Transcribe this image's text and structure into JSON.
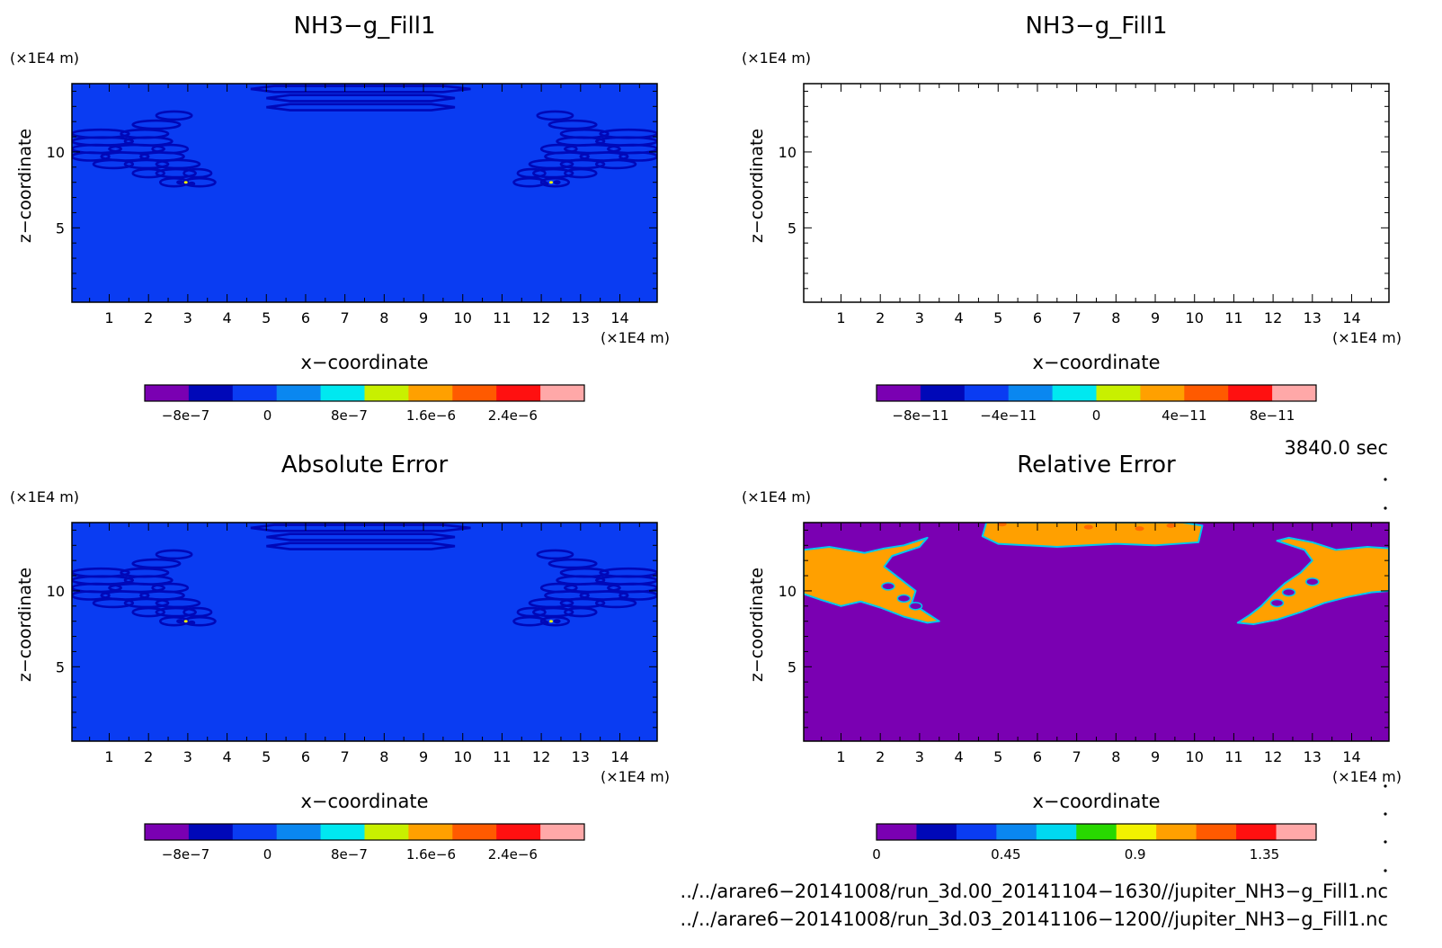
{
  "colors": {
    "background": "#ffffff",
    "field_bg": "#0a87f0",
    "field_line": "#0a3cf2",
    "field_dark": "#0008b8",
    "relerr_bg": "#7a00b2",
    "relerr_fill": "#f2f200",
    "relerr_edge": "#00c8ee",
    "relerr_hot": "#ff6a00"
  },
  "chart_data": [
    {
      "type": "heatmap",
      "title": "NH3−g_Fill1",
      "xlabel": "x−coordinate",
      "ylabel": "z−coordinate",
      "x_unit": "(×1E4 m)",
      "y_unit": "(×1E4 m)",
      "xticks": [
        "1",
        "2",
        "3",
        "4",
        "5",
        "6",
        "7",
        "8",
        "9",
        "10",
        "11",
        "12",
        "13",
        "14"
      ],
      "yticks": [
        "5",
        "10"
      ],
      "xlim": [
        0.05,
        14.95
      ],
      "ylim": [
        0.1,
        14.5
      ],
      "colorbar": {
        "colors": [
          "#7a00b2",
          "#0008b8",
          "#0a3cf2",
          "#0a87f0",
          "#00e8f0",
          "#c8f000",
          "#ffa000",
          "#ff5a00",
          "#ff1010",
          "#ffa8a8"
        ],
        "ticks": [
          "−8e−7",
          "0",
          "8e−7",
          "1.6e−6",
          "2.4e−6"
        ],
        "tick_values": [
          -8e-07,
          0,
          8e-07,
          1.6e-06,
          2.4e-06
        ],
        "range": [
          -1.2e-06,
          3.1e-06
        ]
      },
      "background_value": 1e-08,
      "contour_value": -5e-07
    },
    {
      "type": "heatmap",
      "title": "NH3−g_Fill1",
      "xlabel": "x−coordinate",
      "ylabel": "z−coordinate",
      "x_unit": "(×1E4 m)",
      "y_unit": "(×1E4 m)",
      "xticks": [
        "1",
        "2",
        "3",
        "4",
        "5",
        "6",
        "7",
        "8",
        "9",
        "10",
        "11",
        "12",
        "13",
        "14"
      ],
      "yticks": [
        "5",
        "10"
      ],
      "xlim": [
        0.05,
        14.95
      ],
      "ylim": [
        0.1,
        14.5
      ],
      "colorbar": {
        "colors": [
          "#7a00b2",
          "#0008b8",
          "#0a3cf2",
          "#0a87f0",
          "#00e8f0",
          "#c8f000",
          "#ffa000",
          "#ff5a00",
          "#ff1010",
          "#ffa8a8"
        ],
        "ticks": [
          "−8e−11",
          "−4e−11",
          "0",
          "4e−11",
          "8e−11"
        ],
        "tick_values": [
          -8e-11,
          -4e-11,
          0,
          4e-11,
          8e-11
        ],
        "range": [
          -1e-10,
          1e-10
        ]
      },
      "empty": true
    },
    {
      "type": "heatmap",
      "title": "Absolute Error",
      "xlabel": "x−coordinate",
      "ylabel": "z−coordinate",
      "x_unit": "(×1E4 m)",
      "y_unit": "(×1E4 m)",
      "xticks": [
        "1",
        "2",
        "3",
        "4",
        "5",
        "6",
        "7",
        "8",
        "9",
        "10",
        "11",
        "12",
        "13",
        "14"
      ],
      "yticks": [
        "5",
        "10"
      ],
      "xlim": [
        0.05,
        14.95
      ],
      "ylim": [
        0.1,
        14.5
      ],
      "colorbar": {
        "colors": [
          "#7a00b2",
          "#0008b8",
          "#0a3cf2",
          "#0a87f0",
          "#00e8f0",
          "#c8f000",
          "#ffa000",
          "#ff5a00",
          "#ff1010",
          "#ffa8a8"
        ],
        "ticks": [
          "−8e−7",
          "0",
          "8e−7",
          "1.6e−6",
          "2.4e−6"
        ],
        "tick_values": [
          -8e-07,
          0,
          8e-07,
          1.6e-06,
          2.4e-06
        ],
        "range": [
          -1.2e-06,
          3.1e-06
        ]
      },
      "background_value": 1e-08,
      "contour_value": -5e-07
    },
    {
      "type": "heatmap",
      "title": "Relative Error",
      "xlabel": "x−coordinate",
      "ylabel": "z−coordinate",
      "x_unit": "(×1E4 m)",
      "y_unit": "(×1E4 m)",
      "xticks": [
        "1",
        "2",
        "3",
        "4",
        "5",
        "6",
        "7",
        "8",
        "9",
        "10",
        "11",
        "12",
        "13",
        "14"
      ],
      "yticks": [
        "5",
        "10"
      ],
      "xlim": [
        0.05,
        14.95
      ],
      "ylim": [
        0.1,
        14.5
      ],
      "colorbar": {
        "colors": [
          "#7a00b2",
          "#0008b8",
          "#0a3cf2",
          "#0a87f0",
          "#00d8f0",
          "#28d800",
          "#f2f200",
          "#ffa000",
          "#ff5a00",
          "#ff1010",
          "#ffa8a8"
        ],
        "ticks": [
          "0",
          "0.45",
          "0.9",
          "1.35"
        ],
        "tick_values": [
          0,
          0.45,
          0.9,
          1.35
        ],
        "range": [
          0,
          1.53
        ]
      },
      "background_value": 0,
      "region_value": 1.0
    }
  ],
  "time_label": "3840.0 sec",
  "file_paths": [
    "../../arare6−20141008/run_3d.00_20141104−1630//jupiter_NH3−g_Fill1.nc",
    "../../arare6−20141008/run_3d.03_20141106−1200//jupiter_NH3−g_Fill1.nc"
  ]
}
